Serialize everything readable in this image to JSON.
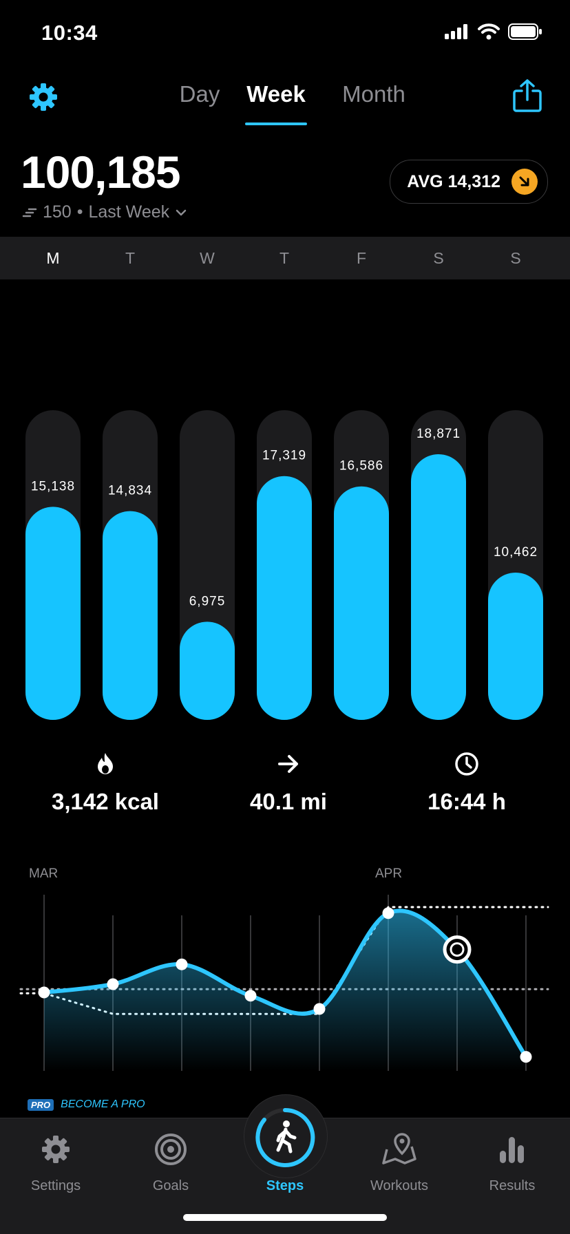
{
  "status": {
    "time": "10:34"
  },
  "header": {
    "tabs": [
      {
        "label": "Day",
        "active": false
      },
      {
        "label": "Week",
        "active": true
      },
      {
        "label": "Month",
        "active": false
      }
    ]
  },
  "summary": {
    "total": "100,185",
    "change": "150",
    "period": "Last Week",
    "avg_label": "AVG 14,312",
    "avg_color": "#f5a623"
  },
  "days": [
    "M",
    "T",
    "W",
    "T",
    "F",
    "S",
    "S"
  ],
  "chart_data": {
    "type": "bar",
    "categories": [
      "M",
      "T",
      "W",
      "T",
      "F",
      "S",
      "S"
    ],
    "values": [
      15138,
      14834,
      6975,
      17319,
      16586,
      18871,
      10462
    ],
    "labels": [
      "15,138",
      "14,834",
      "6,975",
      "17,319",
      "16,586",
      "18,871",
      "10,462"
    ],
    "bar_color": "#16c4ff",
    "track_color": "#1c1c1e"
  },
  "stats": [
    {
      "icon": "flame-icon",
      "value": "3,142 kcal"
    },
    {
      "icon": "arrow-right-icon",
      "value": "40.1 mi"
    },
    {
      "icon": "clock-icon",
      "value": "16:44 h"
    }
  ],
  "trend": {
    "month_labels": [
      "MAR",
      "APR"
    ],
    "points": [
      0.45,
      0.5,
      0.62,
      0.43,
      0.35,
      0.93,
      0.71,
      0.06
    ],
    "baseline": 0.47,
    "selected_index": 6,
    "line_color": "#2ec6ff"
  },
  "promo": {
    "badge": "PRO",
    "text": "BECOME A PRO"
  },
  "tabbar": [
    {
      "label": "Settings",
      "icon": "gear-icon",
      "active": false
    },
    {
      "label": "Goals",
      "icon": "target-icon",
      "active": false
    },
    {
      "label": "Steps",
      "icon": "walking-icon",
      "active": true
    },
    {
      "label": "Workouts",
      "icon": "map-pin-icon",
      "active": false
    },
    {
      "label": "Results",
      "icon": "bar-chart-icon",
      "active": false
    }
  ]
}
